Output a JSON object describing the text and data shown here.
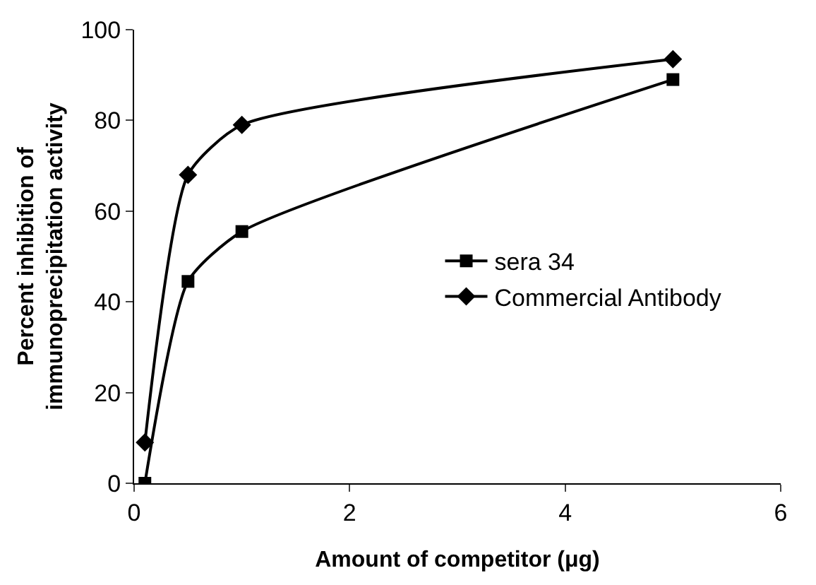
{
  "chart_data": {
    "type": "line",
    "xlabel": "Amount of competitor (μg)",
    "ylabel": "Percent inhibition of\nimmunoprecipitation activity",
    "x": [
      0.1,
      0.5,
      1,
      5
    ],
    "series": [
      {
        "name": "sera 34",
        "color": "#000000",
        "marker": "square",
        "values": [
          0,
          44.5,
          55.5,
          89
        ]
      },
      {
        "name": "Commercial Antibody",
        "color": "#000000",
        "marker": "diamond",
        "values": [
          9,
          68,
          79,
          93.5
        ]
      }
    ],
    "xlim": [
      0,
      6
    ],
    "xticks": [
      0,
      2,
      4,
      6
    ],
    "ylim": [
      0,
      100
    ],
    "yticks": [
      0,
      20,
      40,
      60,
      80,
      100
    ],
    "legend": "right",
    "line_style": "solid"
  }
}
